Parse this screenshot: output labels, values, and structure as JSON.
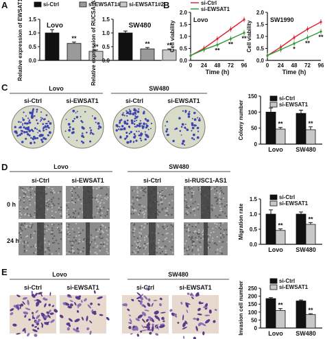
{
  "panels": {
    "a": {
      "letter": "A"
    },
    "b": {
      "letter": "B"
    },
    "c": {
      "letter": "C"
    },
    "d": {
      "letter": "D"
    },
    "e": {
      "letter": "E"
    }
  },
  "legend_a": [
    "si-Ctrl",
    "si-EWSAT1#1",
    "si-EWSAT1#2"
  ],
  "legend_b": [
    "si-Ctrl",
    "si-EWSAT1"
  ],
  "legend_cde": [
    "si-Ctrl",
    "si-EWSAT1"
  ],
  "sig": {
    "dbl": "**",
    "single": "*"
  },
  "c_images": {
    "lovo": "Lovo",
    "sw480": "SW480",
    "cols": [
      "si-Ctrl",
      "si-EWSAT1",
      "si-Ctrl",
      "si-EWSAT1"
    ]
  },
  "d_images": {
    "lovo": "Lovo",
    "sw480": "SW480",
    "cols": [
      "si-Ctrl",
      "si-EWSAT1",
      "si-Ctrl",
      "si-RUSC1-AS1"
    ],
    "rows": [
      "0 h",
      "24 h"
    ]
  },
  "e_images": {
    "lovo": "Lovo",
    "sw480": "SW480",
    "cols": [
      "si-Ctrl",
      "si-EWSAT1",
      "si-Ctrl",
      "si-EWSAT1"
    ]
  },
  "colors": {
    "ctrl": "#111111",
    "kd1": "#9a9a9a",
    "kd2": "#c8c8c8",
    "line_ctrl": "#e0233a",
    "line_kd": "#2f9a36"
  },
  "chart_data": [
    {
      "id": "a-lovo",
      "type": "bar",
      "title": "Lovo",
      "ylabel": "Relative expression of EWSAT1",
      "ylim": [
        0,
        1.5
      ],
      "yticks": [
        "0.0",
        "0.5",
        "1.0",
        "1.5"
      ],
      "categories": [
        "si-Ctrl",
        "si-EWSAT1#1",
        "si-EWSAT1#2"
      ],
      "values": [
        1.0,
        0.62,
        0.33
      ],
      "errors": [
        0.12,
        0.05,
        0.05
      ],
      "significance": [
        "",
        "**",
        "**"
      ]
    },
    {
      "id": "a-sw480",
      "type": "bar",
      "title": "SW480",
      "ylabel": "Relative expression of RUCSA-AS1",
      "ylim": [
        0,
        1.5
      ],
      "yticks": [
        "0.0",
        "0.5",
        "1.0",
        "1.5"
      ],
      "categories": [
        "si-Ctrl",
        "si-EWSAT1#1",
        "si-EWSAT1#2"
      ],
      "values": [
        1.0,
        0.42,
        0.38
      ],
      "errors": [
        0.07,
        0.05,
        0.04
      ],
      "significance": [
        "",
        "**",
        "**"
      ]
    },
    {
      "id": "b-lovo",
      "type": "line",
      "title": "Lovo",
      "xlabel": "Time (h)",
      "ylabel": "Cell viability",
      "x": [
        0,
        24,
        48,
        72,
        96
      ],
      "ylim": [
        0,
        2.0
      ],
      "yticks": [
        "0.0",
        "0.5",
        "1.0",
        "1.5",
        "2.0"
      ],
      "series": [
        {
          "name": "si-Ctrl",
          "values": [
            0.2,
            0.5,
            0.9,
            1.3,
            1.7
          ]
        },
        {
          "name": "si-EWSAT1",
          "values": [
            0.2,
            0.45,
            0.65,
            0.9,
            1.15
          ]
        }
      ],
      "significance": [
        "",
        "",
        "**",
        "**",
        "**"
      ]
    },
    {
      "id": "b-sw1990",
      "type": "line",
      "title": "SW1990",
      "xlabel": "Time (h)",
      "ylabel": "Cell viability",
      "x": [
        0,
        24,
        48,
        72,
        96
      ],
      "ylim": [
        0,
        2.0
      ],
      "yticks": [
        "0.0",
        "0.5",
        "1.0",
        "1.5",
        "2.0"
      ],
      "series": [
        {
          "name": "si-Ctrl",
          "values": [
            0.2,
            0.55,
            0.95,
            1.3,
            1.6
          ]
        },
        {
          "name": "si-EWSAT1",
          "values": [
            0.2,
            0.45,
            0.7,
            0.95,
            1.2
          ]
        }
      ],
      "significance": [
        "",
        "",
        "*",
        "**",
        "**"
      ]
    },
    {
      "id": "c",
      "type": "bar",
      "ylabel": "Colony number",
      "ylim": [
        0,
        150
      ],
      "yticks": [
        "0",
        "50",
        "100",
        "150"
      ],
      "categories": [
        "Lovo",
        "SW480"
      ],
      "series": [
        {
          "name": "si-Ctrl",
          "values": [
            100,
            96
          ],
          "errors": [
            13,
            10
          ]
        },
        {
          "name": "si-EWSAT1",
          "values": [
            47,
            45
          ],
          "errors": [
            5,
            9
          ]
        }
      ],
      "significance": [
        "**",
        "**"
      ]
    },
    {
      "id": "d",
      "type": "bar",
      "ylabel": "Migration rate",
      "ylim": [
        0,
        1.5
      ],
      "yticks": [
        "0.0",
        "0.5",
        "1.0",
        "1.5"
      ],
      "categories": [
        "Lovo",
        "SW480"
      ],
      "series": [
        {
          "name": "si-Ctrl",
          "values": [
            1.0,
            1.0
          ],
          "errors": [
            0.14,
            0.07
          ]
        },
        {
          "name": "si-EWSAT1",
          "values": [
            0.46,
            0.66
          ],
          "errors": [
            0.05,
            0.06
          ]
        }
      ],
      "significance": [
        "**",
        "**"
      ]
    },
    {
      "id": "e",
      "type": "bar",
      "ylabel": "Invasion cell number",
      "ylim": [
        0,
        250
      ],
      "yticks": [
        "0",
        "50",
        "100",
        "150",
        "200",
        "250"
      ],
      "categories": [
        "Lovo",
        "SW480"
      ],
      "series": [
        {
          "name": "si-Ctrl",
          "values": [
            185,
            170
          ],
          "errors": [
            6,
            6
          ]
        },
        {
          "name": "si-EWSAT1",
          "values": [
            110,
            85
          ],
          "errors": [
            12,
            5
          ]
        }
      ],
      "significance": [
        "**",
        "**"
      ]
    }
  ]
}
